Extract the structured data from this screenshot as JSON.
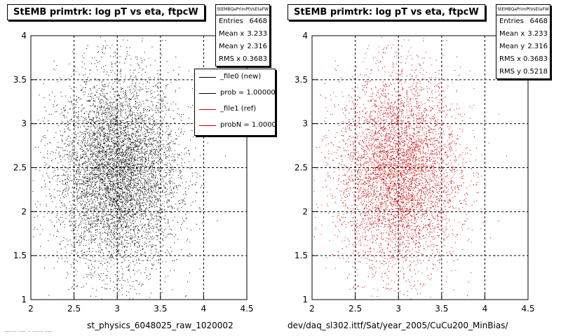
{
  "colors": {
    "new": "#000000",
    "ref": "#cc0000"
  },
  "chart_data": [
    {
      "type": "scatter",
      "title": "StEMB primtrk: log pT vs eta, ftpcW",
      "xlabel": "st_physics_6048025_raw_1020002",
      "ylabel": "",
      "xlim": [
        2,
        4.5
      ],
      "ylim": [
        1,
        4
      ],
      "xticks": [
        "2",
        "2.5",
        "3",
        "3.5",
        "4",
        "4.5"
      ],
      "yticks": [
        "1",
        "1.5",
        "2",
        "2.5",
        "3",
        "3.5",
        "4"
      ],
      "grid": true,
      "stats": {
        "name": "StEMBQaPrimPtVsEtaFW",
        "rows": [
          {
            "label": "Entries",
            "value": "6468"
          },
          {
            "label": "Mean x",
            "value": "3.233"
          },
          {
            "label": "Mean y",
            "value": "2.316"
          },
          {
            "label": "RMS x",
            "value": "0.3683"
          }
        ]
      },
      "series": [
        {
          "name": "_file0 (new)",
          "color": "#000000",
          "points": 6468,
          "center": [
            3.0,
            2.45
          ],
          "spread": [
            0.35,
            0.55
          ]
        }
      ],
      "legend": {
        "placement": "top-right",
        "entries": [
          {
            "label": "_file0 (new)",
            "color": "#000000"
          },
          {
            "label": "prob = 1.000000",
            "color": "#000000"
          },
          {
            "label": "_file1 (ref)",
            "color": "#cc0000"
          },
          {
            "label": "probN = 1.000000",
            "color": "#cc0000"
          }
        ]
      }
    },
    {
      "type": "scatter",
      "title": "StEMB primtrk: log pT vs eta, ftpcW",
      "xlabel": "dev/daq_sl302.ittf/Sat/year_2005/CuCu200_MinBias/",
      "ylabel": "",
      "xlim": [
        2,
        4.5
      ],
      "ylim": [
        1,
        4
      ],
      "xticks": [
        "2",
        "2.5",
        "3",
        "3.5",
        "4",
        "4.5"
      ],
      "yticks": [
        "1",
        "1.5",
        "2",
        "2.5",
        "3",
        "3.5",
        "4"
      ],
      "grid": true,
      "stats": {
        "name": "StEMBQaPrimPtVsEtaFW",
        "rows": [
          {
            "label": "Entries",
            "value": "6468"
          },
          {
            "label": "Mean x",
            "value": "3.233"
          },
          {
            "label": "Mean y",
            "value": "2.316"
          },
          {
            "label": "RMS x",
            "value": "0.3683"
          },
          {
            "label": "RMS y",
            "value": "0.5218"
          }
        ]
      },
      "series": [
        {
          "name": "_file1 (ref)",
          "color": "#cc0000",
          "points": 6468,
          "center": [
            3.0,
            2.45
          ],
          "spread": [
            0.35,
            0.55
          ]
        }
      ]
    }
  ],
  "footer_note": "........ ..... .. ....... ....."
}
